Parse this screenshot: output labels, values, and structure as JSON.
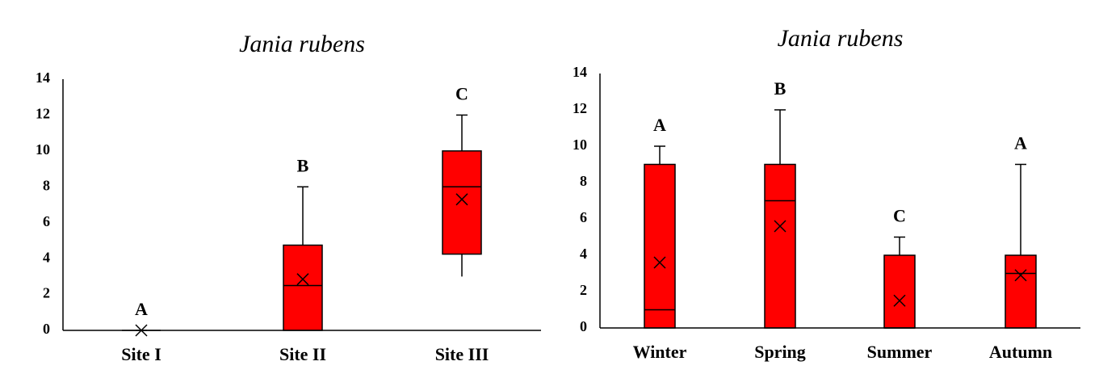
{
  "chart_data": [
    {
      "type": "box",
      "title": "Jania rubens",
      "color": "#ff0000",
      "categories": [
        "Site I",
        "Site II",
        "Site III"
      ],
      "boxes": [
        {
          "min": 0,
          "q1": 0,
          "median": 0,
          "q3": 0,
          "max": 0,
          "mean": 0
        },
        {
          "min": 0,
          "q1": 0,
          "median": 2.5,
          "q3": 4.75,
          "max": 8,
          "mean": 2.85
        },
        {
          "min": 3,
          "q1": 4.25,
          "median": 8,
          "q3": 10,
          "max": 12,
          "mean": 7.3
        }
      ],
      "letters": [
        "A",
        "B",
        "C"
      ],
      "ylim": [
        0,
        14
      ],
      "yticks": [
        0,
        2,
        4,
        6,
        8,
        10,
        12,
        14
      ],
      "grid": false
    },
    {
      "type": "box",
      "title": "Jania rubens",
      "color": "#ff0000",
      "categories": [
        "Winter",
        "Spring",
        "Summer",
        "Autumn"
      ],
      "boxes": [
        {
          "min": 0,
          "q1": 0,
          "median": 1,
          "q3": 9,
          "max": 10,
          "mean": 3.6
        },
        {
          "min": 0,
          "q1": 0,
          "median": 7,
          "q3": 9,
          "max": 12,
          "mean": 5.6
        },
        {
          "min": 0,
          "q1": 0,
          "median": 0,
          "q3": 4,
          "max": 5,
          "mean": 1.5
        },
        {
          "min": 0,
          "q1": 0,
          "median": 3,
          "q3": 4,
          "max": 9,
          "mean": 2.9
        }
      ],
      "letters": [
        "A",
        "B",
        "C",
        "A"
      ],
      "ylim": [
        0,
        14
      ],
      "yticks": [
        0,
        2,
        4,
        6,
        8,
        10,
        12,
        14
      ],
      "grid": false
    }
  ]
}
